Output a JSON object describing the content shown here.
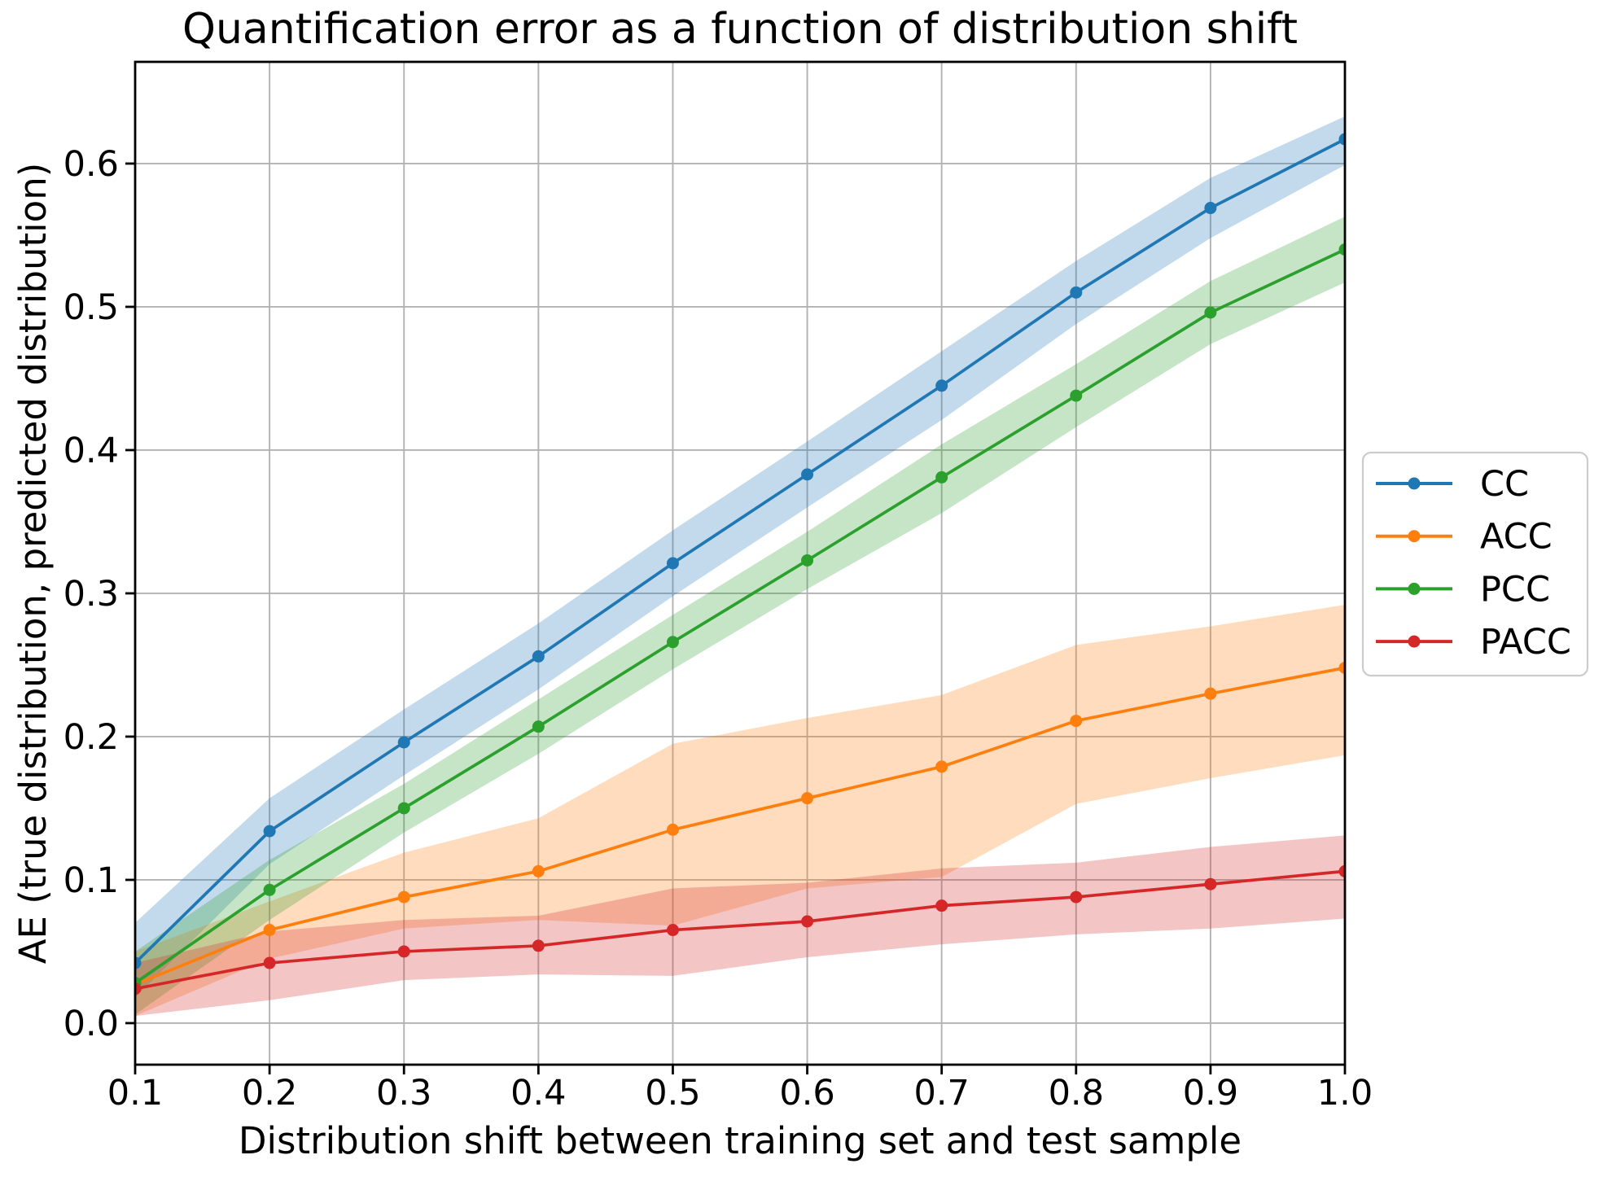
{
  "chart_data": {
    "type": "line",
    "title": "Quantification error as a function of distribution shift",
    "xlabel": "Distribution shift between training set and test sample",
    "ylabel": "AE (true distribution, predicted distribution)",
    "grid": true,
    "legend_position": "outside-right-center",
    "xlim": [
      0.1,
      1.0
    ],
    "ylim": [
      -0.029,
      0.671
    ],
    "xticks": [
      0.1,
      0.2,
      0.3,
      0.4,
      0.5,
      0.6,
      0.7,
      0.8,
      0.9,
      1.0
    ],
    "xtick_labels": [
      "0.1",
      "0.2",
      "0.3",
      "0.4",
      "0.5",
      "0.6",
      "0.7",
      "0.8",
      "0.9",
      "1.0"
    ],
    "yticks": [
      0.0,
      0.1,
      0.2,
      0.3,
      0.4,
      0.5,
      0.6
    ],
    "ytick_labels": [
      "0.0",
      "0.1",
      "0.2",
      "0.3",
      "0.4",
      "0.5",
      "0.6"
    ],
    "x": [
      0.1,
      0.2,
      0.3,
      0.4,
      0.5,
      0.6,
      0.7,
      0.8,
      0.9,
      1.0
    ],
    "band_opacity": 0.27,
    "series": [
      {
        "name": "CC",
        "color": "#1f77b4",
        "values": [
          0.042,
          0.134,
          0.196,
          0.256,
          0.321,
          0.383,
          0.445,
          0.51,
          0.569,
          0.617
        ],
        "band_low": [
          0.018,
          0.111,
          0.173,
          0.233,
          0.298,
          0.36,
          0.421,
          0.488,
          0.548,
          0.599
        ],
        "band_high": [
          0.07,
          0.157,
          0.219,
          0.279,
          0.344,
          0.406,
          0.469,
          0.532,
          0.59,
          0.633
        ]
      },
      {
        "name": "ACC",
        "color": "#ff7f0e",
        "values": [
          0.027,
          0.065,
          0.088,
          0.106,
          0.135,
          0.157,
          0.179,
          0.211,
          0.23,
          0.248
        ],
        "band_low": [
          0.005,
          0.045,
          0.066,
          0.072,
          0.068,
          0.094,
          0.102,
          0.153,
          0.171,
          0.187
        ],
        "band_high": [
          0.05,
          0.085,
          0.119,
          0.143,
          0.195,
          0.213,
          0.229,
          0.264,
          0.277,
          0.292
        ]
      },
      {
        "name": "PCC",
        "color": "#2ca02c",
        "values": [
          0.028,
          0.093,
          0.15,
          0.207,
          0.266,
          0.323,
          0.381,
          0.438,
          0.496,
          0.54
        ],
        "band_low": [
          0.006,
          0.072,
          0.133,
          0.188,
          0.247,
          0.303,
          0.356,
          0.416,
          0.474,
          0.517
        ],
        "band_high": [
          0.05,
          0.114,
          0.167,
          0.226,
          0.285,
          0.343,
          0.404,
          0.46,
          0.518,
          0.563
        ]
      },
      {
        "name": "PACC",
        "color": "#d62728",
        "values": [
          0.024,
          0.042,
          0.05,
          0.054,
          0.065,
          0.071,
          0.082,
          0.088,
          0.097,
          0.106
        ],
        "band_low": [
          0.005,
          0.016,
          0.03,
          0.034,
          0.033,
          0.046,
          0.055,
          0.062,
          0.066,
          0.073
        ],
        "band_high": [
          0.042,
          0.064,
          0.072,
          0.075,
          0.094,
          0.098,
          0.108,
          0.112,
          0.123,
          0.131
        ]
      }
    ]
  },
  "styles": {
    "grid_color": "#b2b2b2",
    "spine_color": "#000000",
    "legend_border_color": "#cccccc",
    "background_color": "#ffffff"
  }
}
